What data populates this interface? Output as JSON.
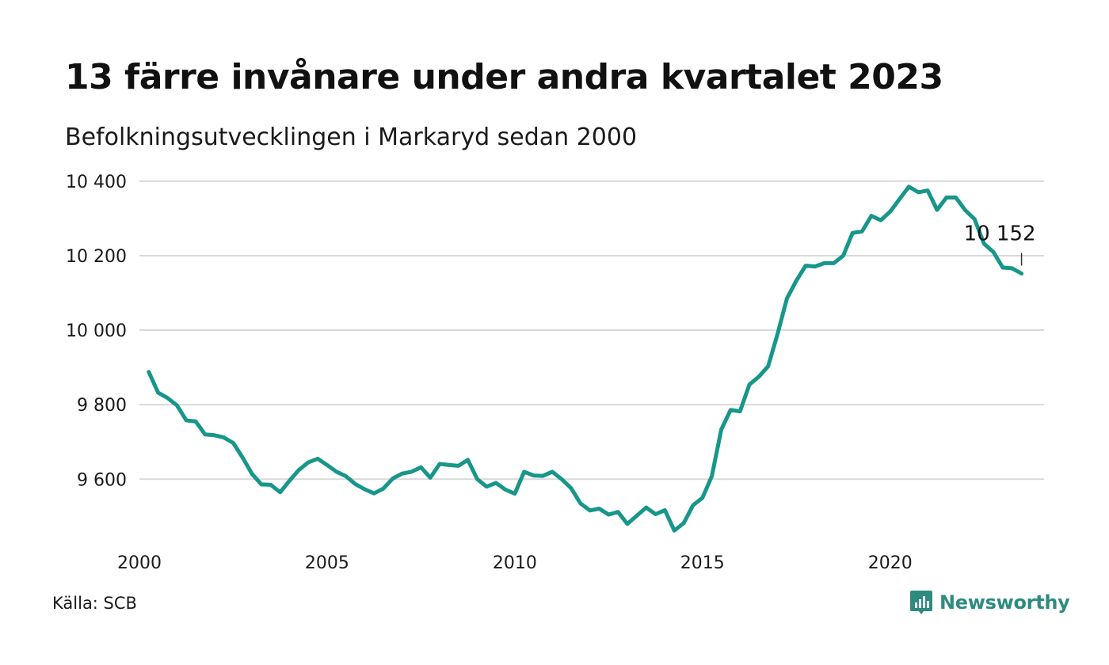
{
  "header": {
    "title": "13 färre invånare under andra kvartalet 2023",
    "subtitle": "Befolkningsutvecklingen i Markaryd sedan 2000"
  },
  "footer": {
    "source": "Källa: SCB",
    "brand": "Newsworthy"
  },
  "colors": {
    "line": "#17968a",
    "grid": "#d9d9d9",
    "brand": "#2e8b80"
  },
  "chart_data": {
    "type": "line",
    "title": "13 färre invånare under andra kvartalet 2023",
    "subtitle": "Befolkningsutvecklingen i Markaryd sedan 2000",
    "xlabel": "",
    "ylabel": "",
    "xlim": [
      2000,
      2024.1
    ],
    "ylim": [
      9420,
      10440
    ],
    "x_ticks": [
      2000,
      2005,
      2010,
      2015,
      2020
    ],
    "x_tick_labels": [
      "2000",
      "2005",
      "2010",
      "2015",
      "2020"
    ],
    "y_ticks": [
      9600,
      9800,
      10000,
      10200,
      10400
    ],
    "y_tick_labels": [
      "9 600",
      "9 800",
      "10 000",
      "10 200",
      "10 400"
    ],
    "grid": true,
    "annotation": {
      "x": 2023.5,
      "y": 10152,
      "label": "10 152"
    },
    "series": [
      {
        "x": [
          2000.25,
          2000.5,
          2000.75,
          2001.0,
          2001.25,
          2001.5,
          2001.75,
          2002.0,
          2002.25,
          2002.5,
          2002.75,
          2003.0,
          2003.25,
          2003.5,
          2003.75,
          2004.0,
          2004.25,
          2004.5,
          2004.75,
          2005.0,
          2005.25,
          2005.5,
          2005.75,
          2006.0,
          2006.25,
          2006.5,
          2006.75,
          2007.0,
          2007.25,
          2007.5,
          2007.75,
          2008.0,
          2008.25,
          2008.5,
          2008.75,
          2009.0,
          2009.25,
          2009.5,
          2009.75,
          2010.0,
          2010.25,
          2010.5,
          2010.75,
          2011.0,
          2011.25,
          2011.5,
          2011.75,
          2012.0,
          2012.25,
          2012.5,
          2012.75,
          2013.0,
          2013.25,
          2013.5,
          2013.75,
          2014.0,
          2014.25,
          2014.5,
          2014.75,
          2015.0,
          2015.25,
          2015.5,
          2015.75,
          2016.0,
          2016.25,
          2016.5,
          2016.75,
          2017.0,
          2017.25,
          2017.5,
          2017.75,
          2018.0,
          2018.25,
          2018.5,
          2018.75,
          2019.0,
          2019.25,
          2019.5,
          2019.75,
          2020.0,
          2020.25,
          2020.5,
          2020.75,
          2021.0,
          2021.25,
          2021.5,
          2021.75,
          2022.0,
          2022.25,
          2022.5,
          2022.75,
          2023.0,
          2023.25,
          2023.5
        ],
        "values": [
          9888,
          9832,
          9818,
          9798,
          9758,
          9755,
          9720,
          9718,
          9712,
          9697,
          9658,
          9614,
          9586,
          9585,
          9565,
          9596,
          9625,
          9645,
          9655,
          9638,
          9620,
          9608,
          9587,
          9573,
          9562,
          9575,
          9602,
          9615,
          9620,
          9632,
          9604,
          9641,
          9638,
          9636,
          9652,
          9600,
          9580,
          9590,
          9572,
          9561,
          9620,
          9610,
          9609,
          9620,
          9600,
          9576,
          9535,
          9516,
          9521,
          9505,
          9512,
          9480,
          9502,
          9524,
          9506,
          9517,
          9462,
          9482,
          9530,
          9550,
          9608,
          9733,
          9786,
          9782,
          9854,
          9875,
          9903,
          9990,
          10085,
          10133,
          10173,
          10171,
          10180,
          10180,
          10200,
          10261,
          10265,
          10307,
          10295,
          10318,
          10352,
          10385,
          10370,
          10375,
          10323,
          10356,
          10356,
          10322,
          10298,
          10232,
          10210,
          10168,
          10166,
          10152
        ]
      }
    ]
  }
}
